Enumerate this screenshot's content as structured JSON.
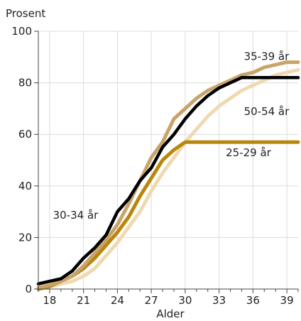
{
  "chart_data": {
    "type": "line",
    "ylabel": "Prosent",
    "xlabel": "Alder",
    "xlim": [
      17,
      40
    ],
    "ylim": [
      0,
      100
    ],
    "x_ticks": [
      18,
      21,
      24,
      27,
      30,
      33,
      36,
      39
    ],
    "y_ticks": [
      0,
      20,
      40,
      60,
      80,
      100
    ],
    "grid": true,
    "x": [
      17,
      18,
      19,
      20,
      21,
      22,
      23,
      24,
      25,
      26,
      27,
      28,
      29,
      30,
      31,
      32,
      33,
      34,
      35,
      36,
      37,
      38,
      39,
      40
    ],
    "series": [
      {
        "name": "50-54 år",
        "color": "#efd9b0",
        "values": [
          0.5,
          1,
          2,
          3,
          5,
          8,
          13,
          18,
          24,
          30,
          38,
          45,
          51,
          57,
          62,
          67,
          71,
          74,
          77,
          79,
          81,
          83,
          84,
          85
        ]
      },
      {
        "name": "25-29 år",
        "color": "#b8860b",
        "values": [
          0,
          1,
          3,
          5,
          8,
          12,
          17,
          22,
          28,
          36,
          43,
          50,
          54,
          57,
          57,
          57,
          57,
          57,
          57,
          57,
          57,
          57,
          57,
          57
        ]
      },
      {
        "name": "35-39 år",
        "color": "#c9a468",
        "values": [
          0.5,
          1.5,
          3,
          5,
          9,
          14,
          19,
          25,
          33,
          42,
          51,
          57,
          66,
          70,
          74,
          77,
          79,
          81,
          83,
          84,
          86,
          87,
          88,
          88
        ]
      },
      {
        "name": "30-34 år",
        "color": "#000000",
        "values": [
          2,
          3,
          4,
          7,
          12,
          16,
          21,
          30,
          35,
          42,
          47,
          55,
          60,
          66,
          71,
          75,
          78,
          80,
          82,
          82,
          82,
          82,
          82,
          82
        ]
      }
    ],
    "annotations": [
      {
        "text": "35-39 år",
        "x": 37.2,
        "y": 88.8
      },
      {
        "text": "50-54 år",
        "x": 37.2,
        "y": 67.5
      },
      {
        "text": "25-29 år",
        "x": 35.6,
        "y": 51.5
      },
      {
        "text": "30-34 år",
        "x": 20.3,
        "y": 27.3
      }
    ]
  }
}
